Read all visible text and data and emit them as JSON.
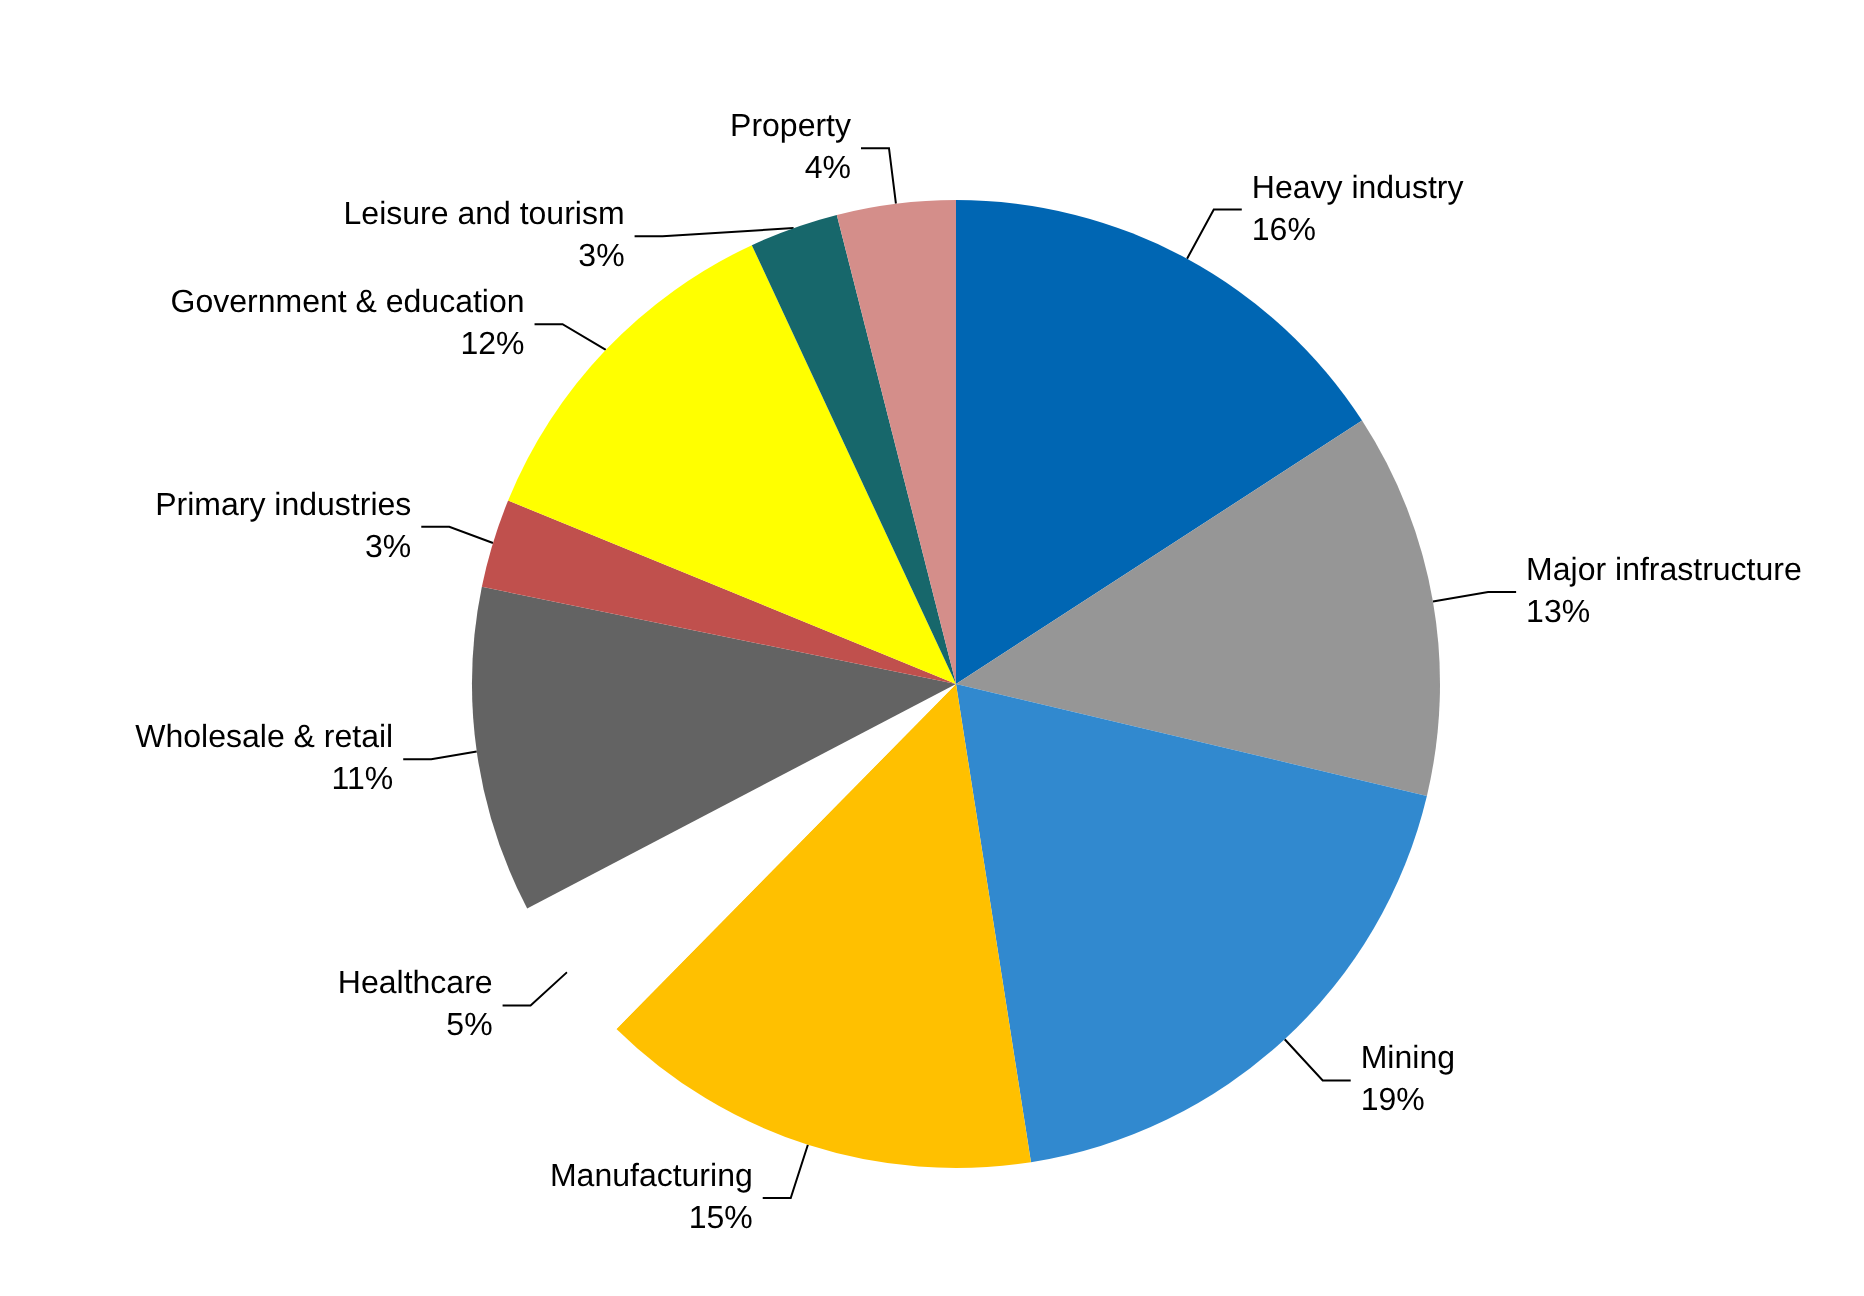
{
  "chart_data": {
    "type": "pie",
    "categories": [
      "Heavy industry",
      "Major infrastructure",
      "Mining",
      "Manufacturing",
      "Healthcare",
      "Wholesale & retail",
      "Primary industries",
      "Government & education",
      "Leisure and tourism",
      "Property"
    ],
    "values": [
      16,
      13,
      19,
      15,
      5,
      11,
      3,
      12,
      3,
      4
    ],
    "colors": [
      "#0066b3",
      "#969696",
      "#3189cf",
      "#ffc000",
      "#ffffff",
      "#636363",
      "#c0504d",
      "#ffff00",
      "#17676b",
      "#d48e8a"
    ],
    "value_labels": [
      "16%",
      "13%",
      "19%",
      "15%",
      "5%",
      "11%",
      "3%",
      "12%",
      "3%",
      "4%"
    ],
    "legend": false
  }
}
